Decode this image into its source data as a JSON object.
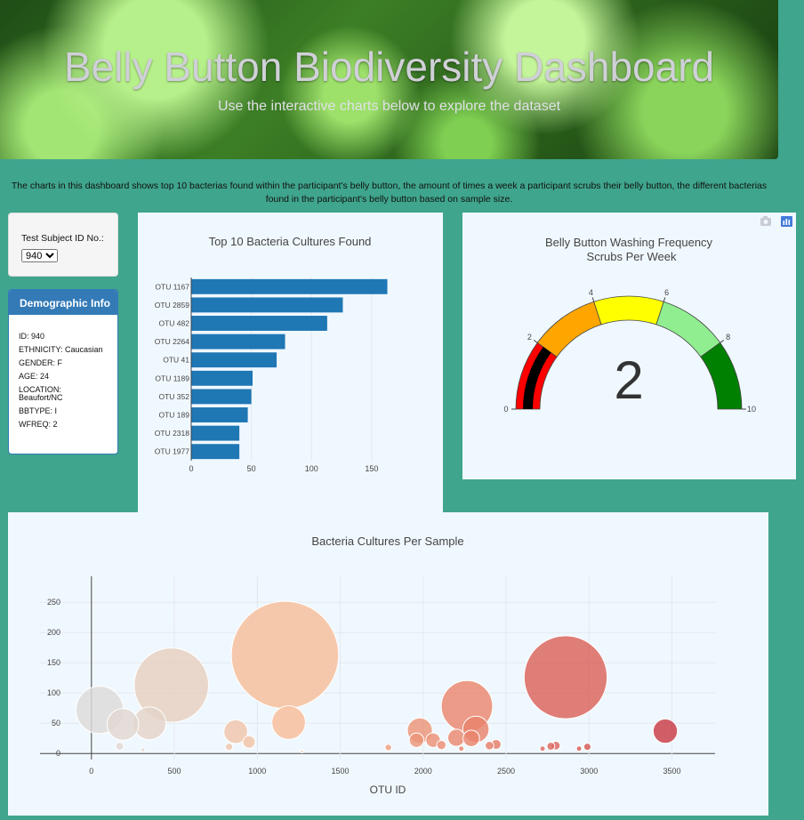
{
  "header": {
    "title": "Belly Button Biodiversity Dashboard",
    "subtitle": "Use the interactive charts below to explore the dataset"
  },
  "intro": "The charts in this dashboard shows top 10 bacterias found within the participant's belly button, the amount of times a week a participant scrubs their belly button, the different bacterias found in the participant's belly button based on sample size.",
  "selector": {
    "label": "Test Subject ID No.:",
    "value": "940"
  },
  "demographic": {
    "title": "Demographic Info",
    "rows": [
      "ID: 940",
      "ETHNICITY: Caucasian",
      "GENDER: F",
      "AGE: 24",
      "LOCATION: Beaufort/NC",
      "BBTYPE: I",
      "WFREQ: 2"
    ]
  },
  "toolbar": {
    "camera_icon": "camera-icon",
    "plotly_icon": "plotly-logo-icon"
  },
  "chart_data": [
    {
      "type": "bar",
      "title": "Top 10 Bacteria Cultures Found",
      "orientation": "horizontal",
      "color": "#1f77b4",
      "categories": [
        "OTU 1167",
        "OTU 2859",
        "OTU 482",
        "OTU 2264",
        "OTU 41",
        "OTU 1189",
        "OTU 352",
        "OTU 189",
        "OTU 2318",
        "OTU 1977"
      ],
      "values": [
        163,
        126,
        113,
        78,
        71,
        51,
        50,
        47,
        40,
        40
      ],
      "xticks": [
        0,
        50,
        100,
        150
      ],
      "xlim": [
        0,
        170
      ]
    },
    {
      "type": "gauge",
      "title": "Belly Button Washing Frequency",
      "subtitle": "Scrubs Per Week",
      "value": 2,
      "range": [
        0,
        10
      ],
      "ticks": [
        0,
        2,
        4,
        6,
        8,
        10
      ],
      "bands": [
        {
          "from": 0,
          "to": 2,
          "color": "#ff0000"
        },
        {
          "from": 2,
          "to": 4,
          "color": "#ffa500"
        },
        {
          "from": 4,
          "to": 6,
          "color": "#ffff00"
        },
        {
          "from": 6,
          "to": 8,
          "color": "#90ee90"
        },
        {
          "from": 8,
          "to": 10,
          "color": "#008000"
        }
      ],
      "bar_color": "#000000"
    },
    {
      "type": "scatter",
      "title": "Bacteria Cultures Per Sample",
      "xlabel": "OTU ID",
      "xticks": [
        0,
        500,
        1000,
        1500,
        2000,
        2500,
        3000,
        3500
      ],
      "yticks": [
        0,
        50,
        100,
        150,
        200,
        250
      ],
      "xlim": [
        -310,
        3760
      ],
      "ylim": [
        -10,
        293
      ],
      "colors": [
        "#dcdcdc",
        "#f6bd98",
        "#e8826a",
        "#c83844"
      ],
      "points": [
        {
          "x": 50,
          "y": 72
        },
        {
          "x": 190,
          "y": 48
        },
        {
          "x": 350,
          "y": 50
        },
        {
          "x": 482,
          "y": 113
        },
        {
          "x": 170,
          "y": 12
        },
        {
          "x": 310,
          "y": 6
        },
        {
          "x": 870,
          "y": 36
        },
        {
          "x": 950,
          "y": 19
        },
        {
          "x": 830,
          "y": 11
        },
        {
          "x": 1167,
          "y": 163
        },
        {
          "x": 1189,
          "y": 51
        },
        {
          "x": 1270,
          "y": 3
        },
        {
          "x": 1790,
          "y": 10
        },
        {
          "x": 1980,
          "y": 38
        },
        {
          "x": 1960,
          "y": 22
        },
        {
          "x": 2060,
          "y": 22
        },
        {
          "x": 2110,
          "y": 14
        },
        {
          "x": 2200,
          "y": 26
        },
        {
          "x": 2264,
          "y": 78
        },
        {
          "x": 2318,
          "y": 40
        },
        {
          "x": 2290,
          "y": 25
        },
        {
          "x": 2230,
          "y": 8
        },
        {
          "x": 2400,
          "y": 13
        },
        {
          "x": 2440,
          "y": 15
        },
        {
          "x": 2720,
          "y": 8
        },
        {
          "x": 2770,
          "y": 12
        },
        {
          "x": 2800,
          "y": 13
        },
        {
          "x": 2859,
          "y": 126
        },
        {
          "x": 2940,
          "y": 8
        },
        {
          "x": 2990,
          "y": 11
        },
        {
          "x": 3460,
          "y": 37
        }
      ]
    }
  ]
}
